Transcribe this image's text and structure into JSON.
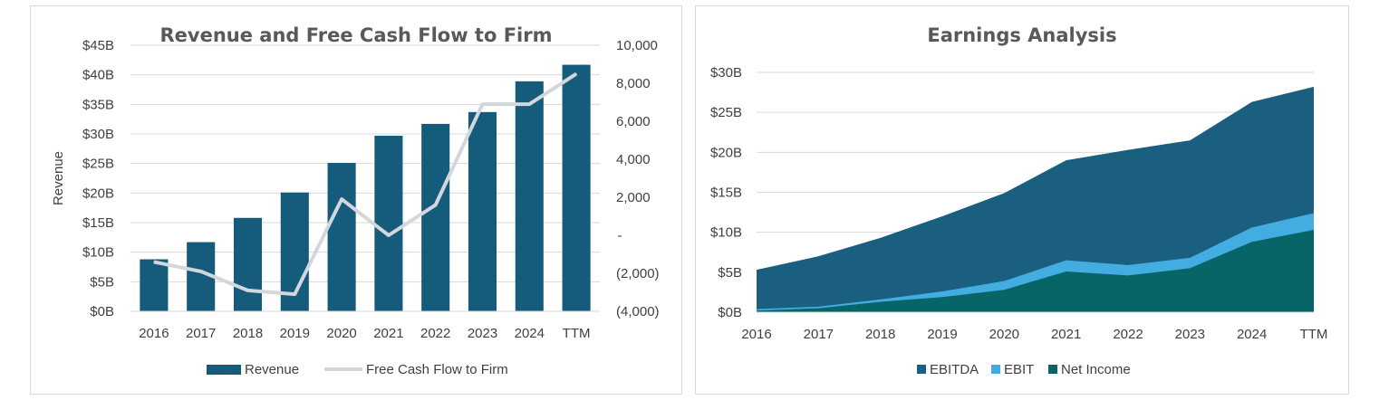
{
  "chart_data": [
    {
      "type": "bar",
      "title": "Revenue and Free Cash Flow to Firm",
      "categories": [
        "2016",
        "2017",
        "2018",
        "2019",
        "2020",
        "2021",
        "2022",
        "2023",
        "2024",
        "TTM"
      ],
      "ylabel": "Revenue",
      "ylim": [
        0,
        45
      ],
      "y_ticks": [
        "$0B",
        "$5B",
        "$10B",
        "$15B",
        "$20B",
        "$25B",
        "$30B",
        "$35B",
        "$40B",
        "$45B"
      ],
      "y2lim": [
        -4000,
        10000
      ],
      "y2_ticks": [
        "(4,000)",
        "(2,000)",
        "-",
        "2,000",
        "4,000",
        "6,000",
        "8,000",
        "10,000"
      ],
      "grid": true,
      "legend_position": "bottom",
      "series": [
        {
          "name": "Revenue",
          "type": "bar",
          "axis": "left",
          "color": "#155c7c",
          "values": [
            8.8,
            11.7,
            15.8,
            20.1,
            25.1,
            29.7,
            31.7,
            33.7,
            38.9,
            41.7
          ]
        },
        {
          "name": "Free Cash Flow to Firm",
          "type": "line",
          "axis": "right",
          "color": "#d3d7dc",
          "values": [
            -1400,
            -1900,
            -2900,
            -3100,
            1900,
            0,
            1600,
            6900,
            6900,
            8500
          ]
        }
      ]
    },
    {
      "type": "area",
      "title": "Earnings Analysis",
      "categories": [
        "2016",
        "2017",
        "2018",
        "2019",
        "2020",
        "2021",
        "2022",
        "2023",
        "2024",
        "TTM"
      ],
      "ylim": [
        0,
        30
      ],
      "y_ticks": [
        "$0B",
        "$5B",
        "$10B",
        "$15B",
        "$20B",
        "$25B",
        "$30B"
      ],
      "grid": true,
      "legend_position": "bottom",
      "series": [
        {
          "name": "EBITDA",
          "color": "#1a5e80",
          "values": [
            5.3,
            7.0,
            9.3,
            12.0,
            14.9,
            19.0,
            20.3,
            21.5,
            26.3,
            28.2
          ]
        },
        {
          "name": "EBIT",
          "color": "#43ade2",
          "values": [
            0.4,
            0.7,
            1.6,
            2.6,
            3.9,
            6.5,
            5.9,
            6.8,
            10.6,
            12.4
          ]
        },
        {
          "name": "Net Income",
          "color": "#076567",
          "values": [
            0.2,
            0.5,
            1.3,
            1.9,
            2.8,
            5.1,
            4.6,
            5.5,
            8.8,
            10.3
          ]
        }
      ]
    }
  ]
}
